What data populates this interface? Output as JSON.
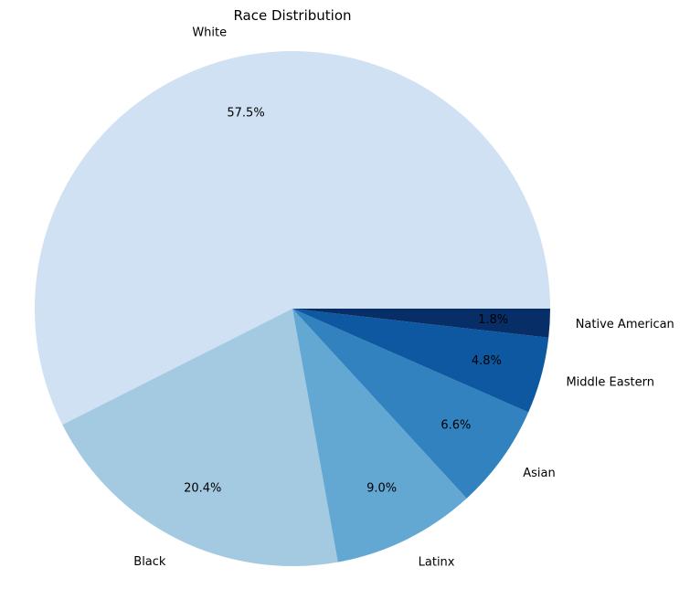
{
  "chart_data": {
    "type": "pie",
    "title": "Race Distribution",
    "start_angle": 0,
    "direction": "counterclockwise",
    "slices": [
      {
        "label": "White",
        "value": 57.5,
        "pct_label": "57.5%",
        "color": "#cfe1f2"
      },
      {
        "label": "Black",
        "value": 20.4,
        "pct_label": "20.4%",
        "color": "#a4cae2"
      },
      {
        "label": "Latinx",
        "value": 9.0,
        "pct_label": "9.0%",
        "color": "#62a8d3"
      },
      {
        "label": "Asian",
        "value": 6.6,
        "pct_label": "6.6%",
        "color": "#3282bf"
      },
      {
        "label": "Middle Eastern",
        "value": 4.8,
        "pct_label": "4.8%",
        "color": "#0d58a1"
      },
      {
        "label": "Native American",
        "value": 1.8,
        "pct_label": "1.8%",
        "color": "#082e68"
      }
    ]
  }
}
